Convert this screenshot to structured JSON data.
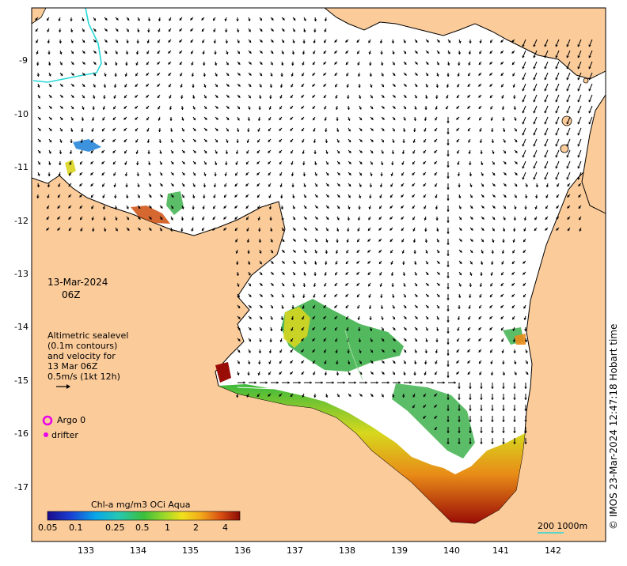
{
  "map": {
    "date": "13-Mar-2024",
    "time": "06Z",
    "description_lines": [
      "Altimetric sealevel",
      "(0.1m contours)",
      "and velocity for",
      "13 Mar 06Z",
      "0.5m/s (1kt 12h)"
    ],
    "argo_label": "Argo 0",
    "drifter_label": "drifter",
    "colorbar_title": "Chl-a mg/m3 OCi Aqua",
    "colorbar_ticks": [
      "0.05",
      "0.1",
      "0.25",
      "0.5",
      "1",
      "2",
      "4"
    ],
    "scale_label": "200  1000m",
    "credit": "© IMOS 23-Mar-2024 12:47:18 Hobart time",
    "x_ticks": [
      "133",
      "134",
      "135",
      "136",
      "137",
      "138",
      "139",
      "140",
      "141",
      "142"
    ],
    "y_ticks": [
      "-9",
      "-10",
      "-11",
      "-12",
      "-13",
      "-14",
      "-15",
      "-16",
      "-17"
    ],
    "colors": {
      "land": "#fbcb9a",
      "ocean": "#ffffff",
      "argo": "#e800e8",
      "contour": "#26d7d7",
      "high_chl": "#9a0c06"
    }
  }
}
